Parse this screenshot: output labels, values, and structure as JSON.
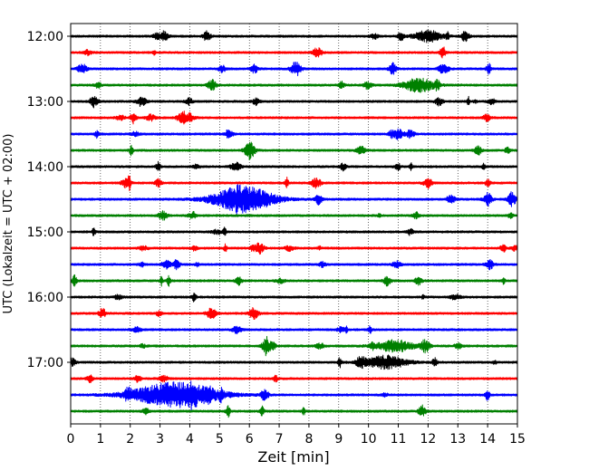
{
  "chart_data": {
    "type": "line",
    "title": "",
    "xlabel": "Zeit  [min]",
    "ylabel": "UTC (Lokalzeit = UTC + 02:00)",
    "xlim": [
      0,
      15
    ],
    "x_ticks": [
      "0",
      "1",
      "2",
      "3",
      "4",
      "5",
      "6",
      "7",
      "8",
      "9",
      "10",
      "11",
      "12",
      "13",
      "14",
      "15"
    ],
    "y_tick_labels": [
      "12:00",
      "13:00",
      "14:00",
      "15:00",
      "16:00",
      "17:00"
    ],
    "trace_start_times": [
      "12:00",
      "12:15",
      "12:30",
      "12:45",
      "13:00",
      "13:15",
      "13:30",
      "13:45",
      "14:00",
      "14:15",
      "14:30",
      "14:45",
      "15:00",
      "15:15",
      "15:30",
      "15:45",
      "16:00",
      "16:15",
      "16:30",
      "16:45",
      "17:00",
      "17:15",
      "17:30",
      "17:45"
    ],
    "trace_color_cycle": [
      "#000000",
      "#ff0000",
      "#0000ff",
      "#008000"
    ],
    "grid": "vertical dotted lines at each minute",
    "legend": "none",
    "events": [
      {
        "trace": "12:00",
        "start_min": 11.2,
        "end_min": 12.8,
        "relative_amplitude": 0.45
      },
      {
        "trace": "12:45",
        "start_min": 10.8,
        "end_min": 12.6,
        "relative_amplitude": 0.55
      },
      {
        "trace": "14:30",
        "start_min": 4.0,
        "end_min": 7.6,
        "relative_amplitude": 1.0
      },
      {
        "trace": "16:45",
        "start_min": 9.8,
        "end_min": 12.0,
        "relative_amplitude": 0.45
      },
      {
        "trace": "17:00",
        "start_min": 9.4,
        "end_min": 11.8,
        "relative_amplitude": 0.5
      },
      {
        "trace": "17:30",
        "start_min": 1.0,
        "end_min": 6.0,
        "relative_amplitude": 0.95
      }
    ]
  }
}
